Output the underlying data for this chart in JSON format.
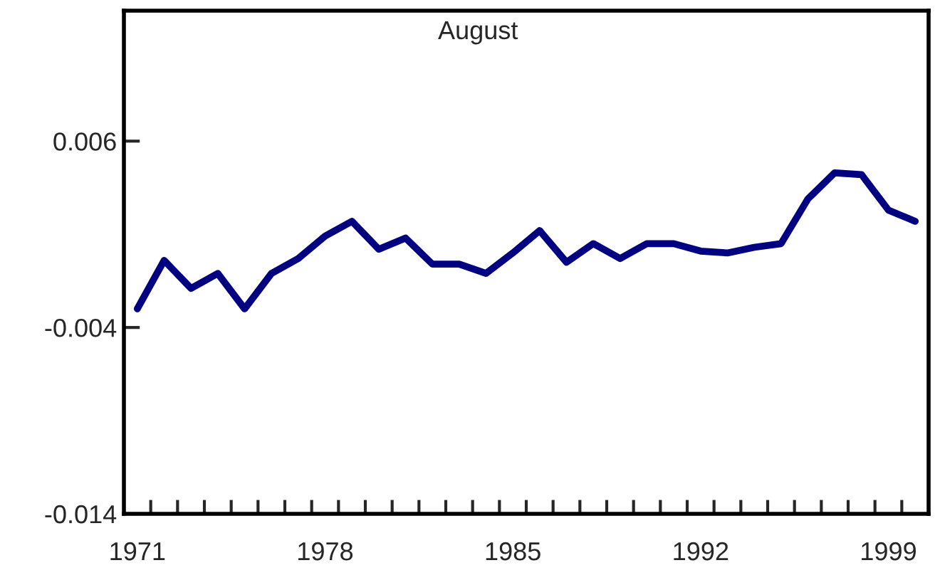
{
  "chart_data": {
    "type": "line",
    "title": "August",
    "categories": [
      "1971",
      null,
      null,
      null,
      null,
      null,
      null,
      "1978",
      null,
      null,
      null,
      null,
      null,
      null,
      "1985",
      null,
      null,
      null,
      null,
      null,
      null,
      "1992",
      null,
      null,
      null,
      null,
      null,
      null,
      "1999",
      null
    ],
    "series": [
      {
        "color": "#000080",
        "values": [
          -0.003,
          -0.0004,
          -0.0019,
          -0.0011,
          -0.003,
          -0.0011,
          -0.0003,
          0.0009,
          0.0017,
          0.0002,
          0.0008,
          -0.0006,
          -0.0006,
          -0.0011,
          0.0,
          0.0012,
          -0.0005,
          0.0005,
          -0.0003,
          0.0005,
          0.0005,
          0.0001,
          0.0,
          0.0003,
          0.0005,
          0.0029,
          0.0043,
          0.0042,
          0.0023,
          0.0017
        ]
      }
    ],
    "ylim": [
      -0.014,
      0.013
    ],
    "yticks": [
      -0.014,
      -0.004,
      0.006
    ],
    "grid": false,
    "legend": false,
    "marker": "none",
    "line_style": "solid"
  }
}
